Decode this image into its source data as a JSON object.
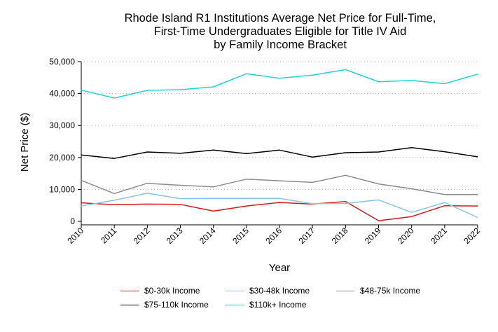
{
  "chart_data": {
    "type": "line",
    "title": "Rhode Island R1 Institutions Average Net Price for Full-Time, First-Time Undergraduates Eligible for Title IV Aid by Family Income Bracket",
    "title_lines": [
      "Rhode Island R1 Institutions Average Net Price for Full-Time,",
      "First-Time Undergraduates Eligible for Title IV Aid",
      "by Family Income Bracket"
    ],
    "xlabel": "Year",
    "ylabel": "Net Price ($)",
    "x": [
      "2010",
      "2011",
      "2012",
      "2013",
      "2014",
      "2015",
      "2016",
      "2017",
      "2018",
      "2019",
      "2020",
      "2021",
      "2022"
    ],
    "xlim": [
      2010,
      2022
    ],
    "ylim": [
      0,
      50000
    ],
    "yticks": [
      0,
      10000,
      20000,
      30000,
      40000,
      50000
    ],
    "ytick_labels": [
      "0",
      "10,000",
      "20,000",
      "30,000",
      "40,000",
      "50,000"
    ],
    "grid": "horizontal dotted",
    "legend_position": "bottom",
    "series": [
      {
        "name": "$0-30k Income",
        "color": "#d7191c",
        "values": [
          5800,
          5200,
          5400,
          5300,
          3200,
          4800,
          5900,
          5400,
          6200,
          200,
          1500,
          4900,
          4800
        ]
      },
      {
        "name": "$30-48k Income",
        "color": "#88c4e6",
        "values": [
          4800,
          6600,
          8800,
          7100,
          7200,
          7200,
          7200,
          5500,
          5600,
          6700,
          2800,
          5900,
          1200
        ]
      },
      {
        "name": "$48-75k Income",
        "color": "#8c8c8c",
        "values": [
          12800,
          8700,
          11900,
          11300,
          10800,
          13200,
          12700,
          12200,
          14400,
          11700,
          10200,
          8400,
          8400
        ]
      },
      {
        "name": "$75-110k Income",
        "color": "#000000",
        "values": [
          20800,
          19700,
          21700,
          21300,
          22300,
          21200,
          22300,
          20100,
          21500,
          21700,
          23100,
          21800,
          20200
        ]
      },
      {
        "name": "$110k+ Income",
        "color": "#1fd3d6",
        "values": [
          41100,
          38600,
          41000,
          41200,
          42100,
          46200,
          44800,
          45800,
          47500,
          43700,
          44100,
          43100,
          46100
        ]
      }
    ]
  }
}
